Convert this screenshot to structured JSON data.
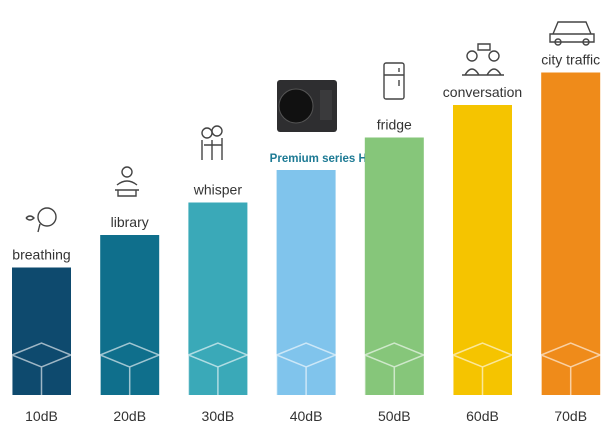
{
  "chart_data": {
    "type": "bar",
    "categories": [
      "breathing",
      "library",
      "whisper",
      "Premium series HP",
      "fridge",
      "conversation",
      "city traffic"
    ],
    "values": [
      10,
      20,
      30,
      40,
      50,
      60,
      70
    ],
    "value_labels": [
      "10dB",
      "20dB",
      "30dB",
      "40dB",
      "50dB",
      "60dB",
      "70dB"
    ],
    "colors": [
      "#0e4a6e",
      "#0f6f8c",
      "#3aa9b8",
      "#80c4ec",
      "#86c67a",
      "#f5c400",
      "#ef8b1a"
    ]
  }
}
